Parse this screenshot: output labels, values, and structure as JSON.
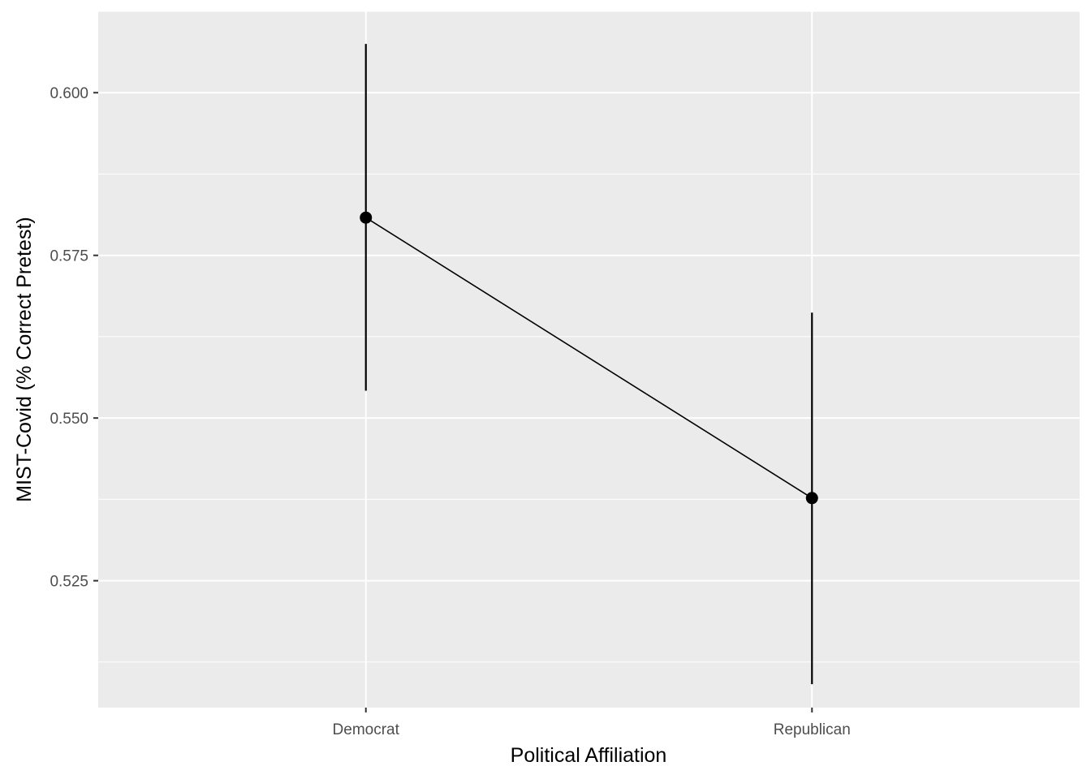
{
  "chart_data": {
    "type": "line",
    "title": "",
    "xlabel": "Political Affiliation",
    "ylabel": "MIST-Covid (% Correct Pretest)",
    "categories": [
      "Democrat",
      "Republican"
    ],
    "series": [
      {
        "values": [
          0.5808,
          0.5377
        ],
        "error_low": [
          0.5542,
          0.5091
        ],
        "error_high": [
          0.6075,
          0.5662
        ]
      }
    ],
    "ylim": [
      0.5055,
      0.6125
    ],
    "y_ticks": [
      0.525,
      0.55,
      0.575,
      0.6
    ],
    "y_tick_labels": [
      "0.525",
      "0.550",
      "0.575",
      "0.600"
    ],
    "grid": true,
    "legend": "none",
    "colors": {
      "panel_background": "#ebebeb",
      "grid": "#ffffff",
      "data": "#000000",
      "tick_text": "#4d4d4d",
      "tick_mark": "#333333"
    }
  }
}
